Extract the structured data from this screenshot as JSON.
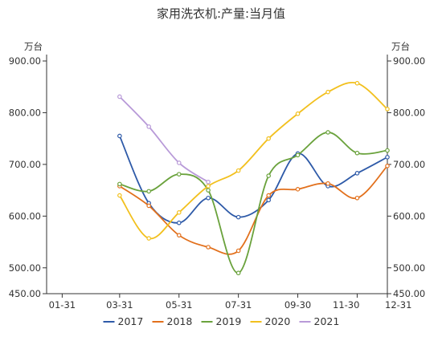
{
  "chart_data": {
    "type": "line",
    "title": "家用洗衣机:产量:当月值",
    "y_unit_left": "万台",
    "y_unit_right": "万台",
    "ylim": [
      450,
      900
    ],
    "yticks": [
      450,
      500,
      600,
      700,
      800,
      900
    ],
    "ytick_labels": [
      "450.00",
      "500.00",
      "600.00",
      "700.00",
      "800.00",
      "900.00"
    ],
    "x_domain": [
      "01-15",
      "12-31"
    ],
    "xticks": [
      {
        "date": "01-31",
        "label": "01-31"
      },
      {
        "date": "03-31",
        "label": "03-31"
      },
      {
        "date": "05-31",
        "label": "05-31"
      },
      {
        "date": "07-31",
        "label": "07-31"
      },
      {
        "date": "09-30",
        "label": "09-30"
      },
      {
        "date": "11-30",
        "label": "11-30"
      },
      {
        "date": "12-31",
        "label": "12-31"
      }
    ],
    "legend_position": "bottom",
    "series": [
      {
        "name": "2017",
        "color": "#2e5aa8",
        "points": [
          [
            "03-31",
            755
          ],
          [
            "04-30",
            625
          ],
          [
            "05-31",
            587
          ],
          [
            "06-30",
            635
          ],
          [
            "07-31",
            598
          ],
          [
            "08-31",
            631
          ],
          [
            "09-30",
            721
          ],
          [
            "10-31",
            658
          ],
          [
            "11-30",
            683
          ],
          [
            "12-31",
            714
          ]
        ]
      },
      {
        "name": "2018",
        "color": "#e2701c",
        "points": [
          [
            "03-31",
            658
          ],
          [
            "04-30",
            620
          ],
          [
            "05-31",
            563
          ],
          [
            "06-30",
            540
          ],
          [
            "07-31",
            533
          ],
          [
            "08-31",
            640
          ],
          [
            "09-30",
            652
          ],
          [
            "10-31",
            663
          ],
          [
            "11-30",
            635
          ],
          [
            "12-31",
            697
          ]
        ]
      },
      {
        "name": "2019",
        "color": "#6aa23c",
        "points": [
          [
            "03-31",
            662
          ],
          [
            "04-30",
            648
          ],
          [
            "05-31",
            681
          ],
          [
            "06-30",
            650
          ],
          [
            "07-31",
            490
          ],
          [
            "08-31",
            678
          ],
          [
            "09-30",
            718
          ],
          [
            "10-31",
            762
          ],
          [
            "11-30",
            722
          ],
          [
            "12-31",
            727
          ]
        ]
      },
      {
        "name": "2020",
        "color": "#f2c01e",
        "points": [
          [
            "03-31",
            640
          ],
          [
            "04-30",
            557
          ],
          [
            "05-31",
            607
          ],
          [
            "06-30",
            658
          ],
          [
            "07-31",
            688
          ],
          [
            "08-31",
            750
          ],
          [
            "09-30",
            798
          ],
          [
            "10-31",
            840
          ],
          [
            "11-30",
            857
          ],
          [
            "12-31",
            807
          ]
        ]
      },
      {
        "name": "2021",
        "color": "#b89ad8",
        "points": [
          [
            "03-31",
            831
          ],
          [
            "04-30",
            773
          ],
          [
            "05-31",
            703
          ],
          [
            "06-30",
            666
          ]
        ]
      }
    ]
  }
}
